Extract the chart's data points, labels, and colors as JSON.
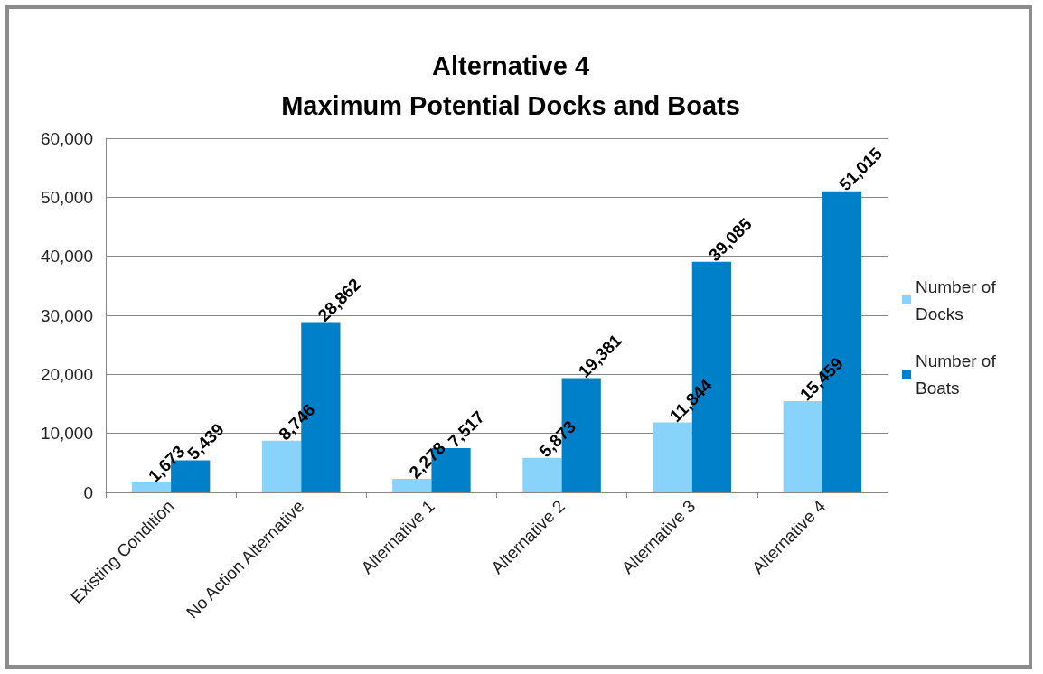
{
  "chart_data": {
    "type": "bar",
    "title": "Alternative 4\nMaximum Potential Docks and Boats",
    "categories": [
      "Existing Condition",
      "No Action Alternative",
      "Alternative 1",
      "Alternative 2",
      "Alternative 3",
      "Alternative 4"
    ],
    "series": [
      {
        "name": "Number of Docks",
        "color": "#87d3fb",
        "values": [
          1673,
          8746,
          2278,
          5873,
          11844,
          15459
        ],
        "value_labels": [
          "1,673",
          "8,746",
          "2,278",
          "5,873",
          "11,844",
          "15,459"
        ]
      },
      {
        "name": "Number of Boats",
        "color": "#0080c8",
        "values": [
          5439,
          28862,
          7517,
          19381,
          39085,
          51015
        ],
        "value_labels": [
          "5,439",
          "28,862",
          "7,517",
          "19,381",
          "39,085",
          "51,015"
        ]
      }
    ],
    "ylim": [
      0,
      60000
    ],
    "yticks": [
      0,
      {
        "value": 10000,
        "label": "10,000"
      },
      {
        "value": 20000,
        "label": "20,000"
      },
      {
        "value": 30000,
        "label": "30,000"
      },
      {
        "value": 40000,
        "label": "40,000"
      },
      {
        "value": 50000,
        "label": "50,000"
      },
      {
        "value": 60000,
        "label": "60,000"
      }
    ],
    "grid": "y",
    "legend": "right"
  }
}
